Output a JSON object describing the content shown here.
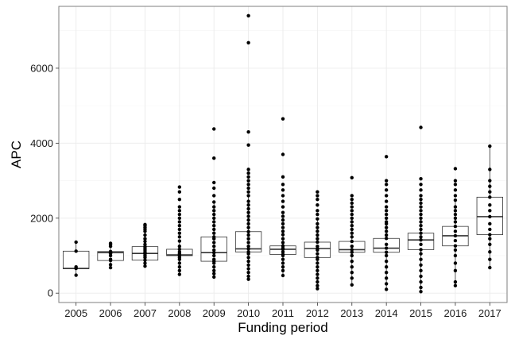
{
  "chart_data": {
    "type": "box",
    "title": "",
    "xlabel": "Funding period",
    "ylabel": "APC",
    "ylim": [
      -250,
      7650
    ],
    "yticks": [
      0,
      2000,
      4000,
      6000
    ],
    "grid": true,
    "legend": "none",
    "colors": {
      "panel_border": "#7f7f7f",
      "grid": "#ebebeb",
      "box": "#333333",
      "point": "#000000"
    },
    "categories": [
      "2005",
      "2006",
      "2007",
      "2008",
      "2009",
      "2010",
      "2011",
      "2012",
      "2013",
      "2014",
      "2015",
      "2016",
      "2017"
    ],
    "boxes": [
      {
        "period": "2005",
        "q1": 650,
        "median": 660,
        "q3": 1120,
        "whisker_low": 480,
        "whisker_high": 1360,
        "points": [
          480,
          660,
          700,
          1120,
          1360
        ]
      },
      {
        "period": "2006",
        "q1": 870,
        "median": 1080,
        "q3": 1110,
        "whisker_low": 680,
        "whisker_high": 1330,
        "points": [
          680,
          760,
          870,
          900,
          1000,
          1060,
          1080,
          1100,
          1110,
          1250,
          1300,
          1330
        ]
      },
      {
        "period": "2007",
        "q1": 880,
        "median": 1060,
        "q3": 1240,
        "whisker_low": 720,
        "whisker_high": 1800,
        "points": [
          720,
          800,
          880,
          950,
          1000,
          1050,
          1060,
          1100,
          1150,
          1200,
          1240,
          1300,
          1380,
          1450,
          1550,
          1650,
          1700,
          1750,
          1800,
          1830
        ]
      },
      {
        "period": "2008",
        "q1": 1000,
        "median": 1020,
        "q3": 1170,
        "whisker_low": 500,
        "whisker_high": 1390,
        "points": [
          500,
          600,
          700,
          800,
          900,
          950,
          1000,
          1020,
          1050,
          1100,
          1170,
          1250,
          1390,
          1500,
          1600,
          1700,
          1800,
          1900,
          2000,
          2100,
          2200,
          2300,
          2500,
          2700,
          2830
        ]
      },
      {
        "period": "2009",
        "q1": 850,
        "median": 1080,
        "q3": 1500,
        "whisker_low": 430,
        "whisker_high": 2430,
        "points": [
          430,
          520,
          600,
          700,
          800,
          850,
          900,
          1000,
          1080,
          1150,
          1250,
          1350,
          1450,
          1500,
          1600,
          1700,
          1800,
          1900,
          2000,
          2100,
          2200,
          2300,
          2430,
          2600,
          2800,
          2950,
          3600,
          4380
        ]
      },
      {
        "period": "2010",
        "q1": 1100,
        "median": 1180,
        "q3": 1640,
        "whisker_low": 370,
        "whisker_high": 2600,
        "points": [
          370,
          450,
          550,
          650,
          750,
          850,
          950,
          1050,
          1100,
          1180,
          1250,
          1350,
          1450,
          1550,
          1640,
          1750,
          1850,
          1950,
          2050,
          2150,
          2250,
          2350,
          2450,
          2600,
          2700,
          2800,
          2900,
          3000,
          3100,
          3200,
          3300,
          3950,
          4300,
          6680,
          7400
        ]
      },
      {
        "period": "2011",
        "q1": 1030,
        "median": 1170,
        "q3": 1260,
        "whisker_low": 470,
        "whisker_high": 1560,
        "points": [
          470,
          600,
          700,
          800,
          900,
          1000,
          1030,
          1100,
          1170,
          1200,
          1260,
          1350,
          1450,
          1560,
          1650,
          1750,
          1850,
          1950,
          2050,
          2150,
          2300,
          2450,
          2600,
          2750,
          2900,
          3100,
          3700,
          4650
        ]
      },
      {
        "period": "2012",
        "q1": 950,
        "median": 1190,
        "q3": 1360,
        "whisker_low": 120,
        "whisker_high": 1980,
        "points": [
          120,
          200,
          300,
          400,
          500,
          600,
          700,
          800,
          900,
          950,
          1050,
          1150,
          1190,
          1250,
          1360,
          1450,
          1550,
          1650,
          1750,
          1850,
          1980,
          2100,
          2200,
          2350,
          2500,
          2600,
          2700
        ]
      },
      {
        "period": "2013",
        "q1": 1090,
        "median": 1160,
        "q3": 1380,
        "whisker_low": 220,
        "whisker_high": 2000,
        "points": [
          220,
          400,
          550,
          700,
          850,
          1000,
          1090,
          1160,
          1250,
          1380,
          1500,
          1600,
          1700,
          1800,
          1900,
          2000,
          2100,
          2200,
          2300,
          2400,
          2500,
          2600,
          3080
        ]
      },
      {
        "period": "2014",
        "q1": 1090,
        "median": 1200,
        "q3": 1460,
        "whisker_low": 100,
        "whisker_high": 1900,
        "points": [
          100,
          250,
          400,
          550,
          700,
          850,
          1000,
          1090,
          1200,
          1300,
          1460,
          1550,
          1650,
          1750,
          1850,
          1900,
          2000,
          2100,
          2200,
          2300,
          2450,
          2600,
          2750,
          2900,
          3000,
          3640
        ]
      },
      {
        "period": "2015",
        "q1": 1160,
        "median": 1420,
        "q3": 1600,
        "whisker_low": 40,
        "whisker_high": 2000,
        "points": [
          40,
          150,
          300,
          450,
          600,
          750,
          900,
          1050,
          1160,
          1300,
          1420,
          1500,
          1600,
          1700,
          1800,
          1900,
          2000,
          2100,
          2200,
          2300,
          2400,
          2500,
          2600,
          2750,
          2900,
          3050,
          4420
        ]
      },
      {
        "period": "2016",
        "q1": 1260,
        "median": 1530,
        "q3": 1780,
        "whisker_low": 200,
        "whisker_high": 2480,
        "points": [
          200,
          300,
          600,
          800,
          1000,
          1150,
          1260,
          1400,
          1530,
          1650,
          1780,
          1900,
          2000,
          2100,
          2200,
          2300,
          2480,
          2600,
          2750,
          2900,
          3000,
          3320
        ]
      },
      {
        "period": "2017",
        "q1": 1560,
        "median": 2040,
        "q3": 2560,
        "whisker_low": 680,
        "whisker_high": 3920,
        "points": [
          680,
          900,
          1100,
          1300,
          1450,
          1560,
          1700,
          1850,
          2040,
          2200,
          2350,
          2560,
          2700,
          2850,
          3000,
          3300,
          3920
        ]
      }
    ]
  }
}
